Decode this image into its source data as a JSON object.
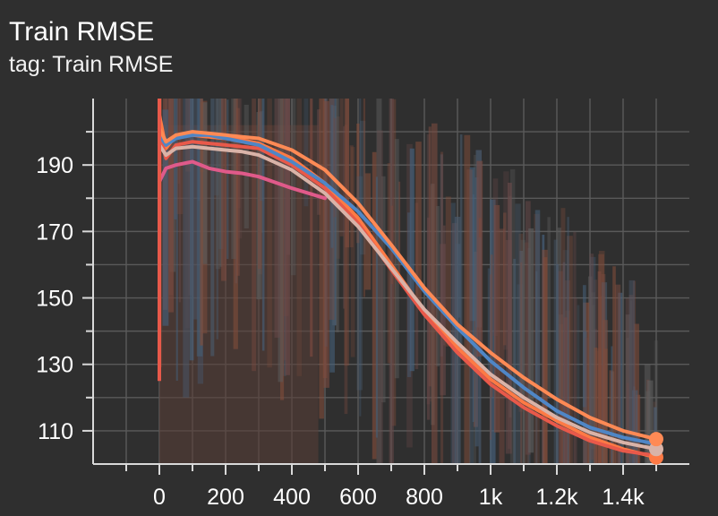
{
  "card": {
    "title": "Train RMSE",
    "subtitle": "tag: Train RMSE"
  },
  "colors": {
    "background": "#2f2f2f",
    "grid": "#5a5a5a",
    "axis": "#d9d9d9",
    "noise_fill": "#5a3e37"
  },
  "chart_data": {
    "type": "line",
    "title": "",
    "xlabel": "",
    "ylabel": "",
    "xlim": [
      -200,
      1600
    ],
    "ylim": [
      100,
      210
    ],
    "x_ticks": [
      {
        "value": 0,
        "label": "0"
      },
      {
        "value": 200,
        "label": "200"
      },
      {
        "value": 400,
        "label": "400"
      },
      {
        "value": 600,
        "label": "600"
      },
      {
        "value": 800,
        "label": "800"
      },
      {
        "value": 1000,
        "label": "1k"
      },
      {
        "value": 1200,
        "label": "1.2k"
      },
      {
        "value": 1400,
        "label": "1.4k"
      }
    ],
    "y_ticks": [
      {
        "value": 110,
        "label": "110"
      },
      {
        "value": 130,
        "label": "130"
      },
      {
        "value": 150,
        "label": "150"
      },
      {
        "value": 170,
        "label": "170"
      },
      {
        "value": 190,
        "label": "190"
      }
    ],
    "grid": true,
    "legend": "none",
    "series": [
      {
        "color": "#ff7a45",
        "end_marker": true,
        "x": [
          0,
          20,
          50,
          100,
          150,
          200,
          250,
          300,
          400,
          500,
          600,
          700,
          800,
          900,
          1000,
          1100,
          1200,
          1300,
          1400,
          1500
        ],
        "y": [
          205,
          195,
          199,
          199,
          198.5,
          198,
          197.5,
          196.5,
          192,
          184.5,
          174,
          160,
          146,
          135,
          125.5,
          118.5,
          113,
          108,
          104.5,
          102
        ]
      },
      {
        "color": "#e8594a",
        "end_marker": false,
        "x": [
          0,
          20,
          50,
          100,
          150,
          200,
          250,
          300,
          400,
          500,
          600,
          700,
          800,
          900,
          1000,
          1100,
          1200,
          1300,
          1400,
          1500
        ],
        "y": [
          200,
          192,
          196,
          197,
          196.5,
          196,
          195.5,
          195,
          190,
          183,
          172.5,
          158.5,
          145,
          133.5,
          124,
          117,
          111.5,
          107,
          104,
          102.5
        ]
      },
      {
        "color": "#e05a8a",
        "end_marker": false,
        "x": [
          0,
          20,
          50,
          100,
          150,
          200,
          250,
          300,
          400,
          500
        ],
        "y": [
          185,
          189,
          190,
          191,
          189,
          188,
          187.5,
          186.5,
          183,
          180
        ]
      },
      {
        "color": "#4f86c6",
        "end_marker": false,
        "x": [
          0,
          20,
          50,
          100,
          150,
          200,
          250,
          300,
          400,
          500,
          600,
          700,
          800,
          900,
          1000,
          1100,
          1200,
          1300,
          1400,
          1500
        ],
        "y": [
          199,
          196,
          198,
          199,
          199,
          198,
          197,
          196,
          191,
          184.5,
          176,
          165,
          152,
          141,
          131,
          123,
          116,
          111,
          108,
          106
        ]
      },
      {
        "color": "#d9b3a8",
        "end_marker": true,
        "x": [
          0,
          20,
          50,
          100,
          150,
          200,
          250,
          300,
          400,
          500,
          600,
          700,
          800,
          900,
          1000,
          1100,
          1200,
          1300,
          1400,
          1500
        ],
        "y": [
          196,
          193,
          195,
          195.5,
          195,
          194.5,
          194,
          193,
          188.5,
          181.5,
          171.5,
          159,
          146.5,
          136.5,
          127,
          120,
          114,
          109.5,
          106.5,
          104.5
        ]
      },
      {
        "color": "#ff8a55",
        "end_marker": true,
        "x": [
          0,
          20,
          50,
          100,
          150,
          200,
          250,
          300,
          400,
          500,
          600,
          700,
          800,
          900,
          1000,
          1100,
          1200,
          1300,
          1400,
          1500
        ],
        "y": [
          201,
          197,
          199,
          200,
          199.5,
          199,
          198.5,
          198,
          194.5,
          188.5,
          178.5,
          166,
          153,
          142,
          133.5,
          126,
          119.5,
          114,
          110,
          107.5
        ]
      }
    ]
  }
}
